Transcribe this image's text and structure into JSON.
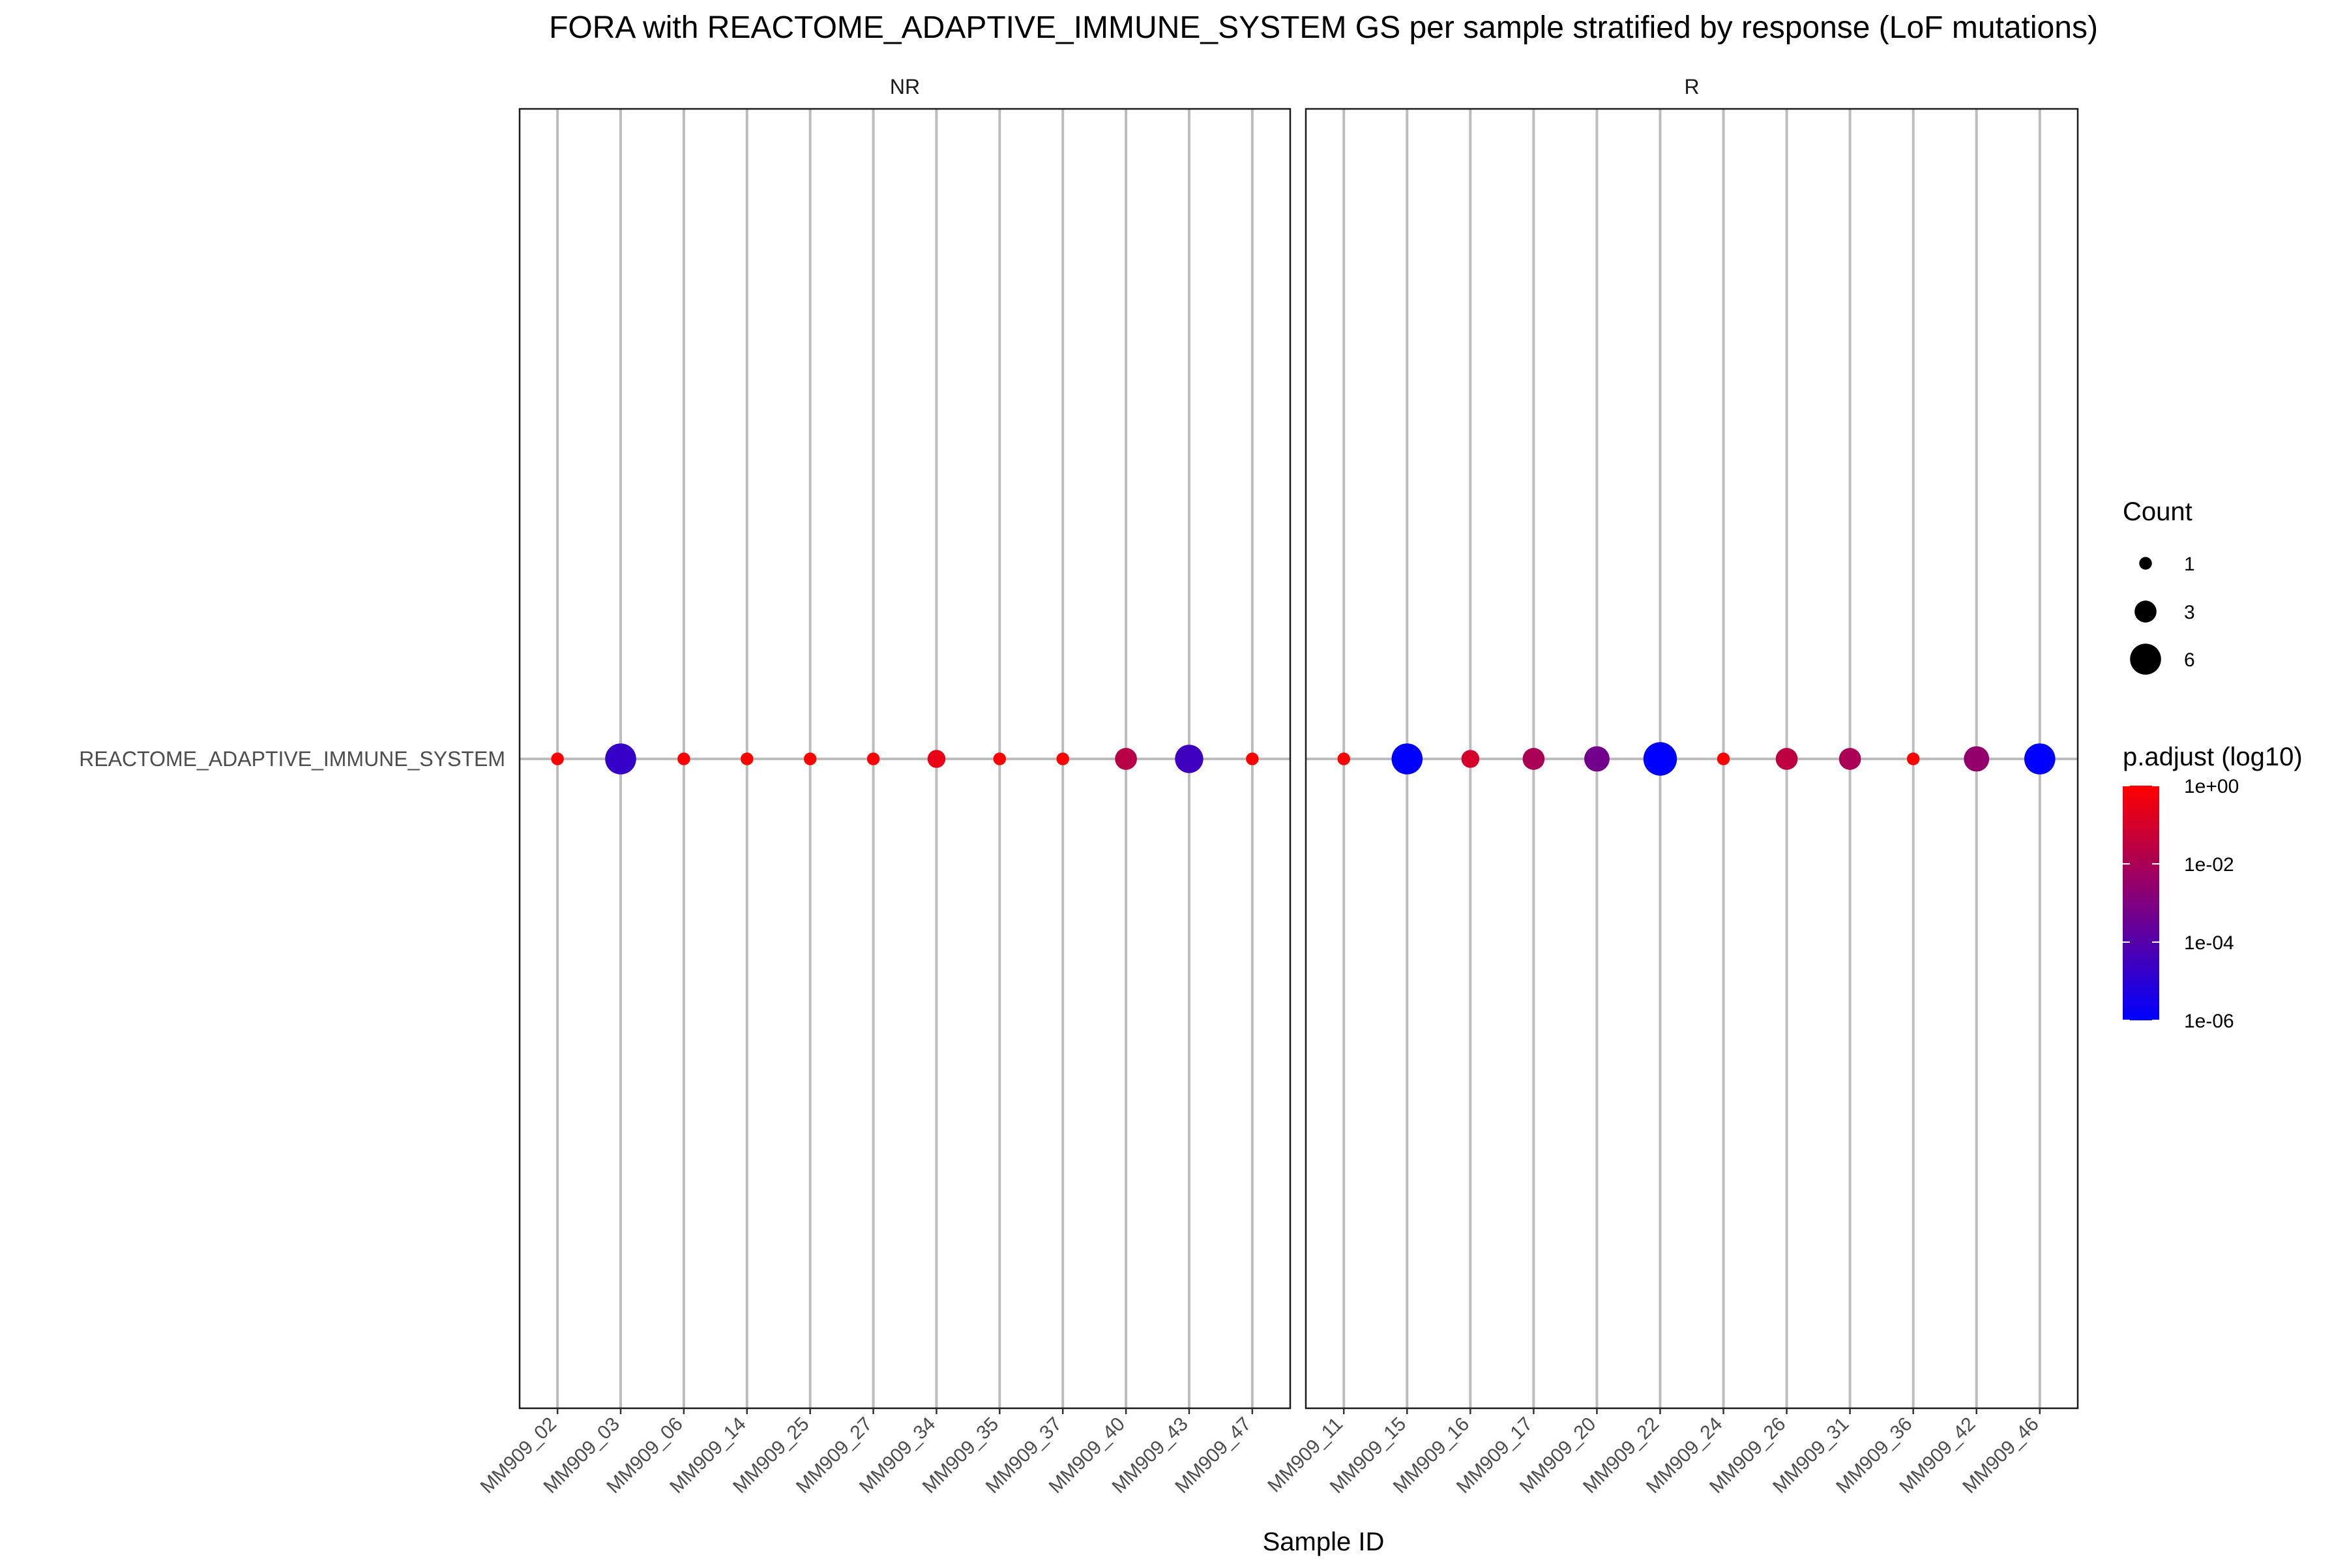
{
  "chart_data": {
    "type": "scatter",
    "title": "FORA with REACTOME_ADAPTIVE_IMMUNE_SYSTEM GS per sample stratified by response (LoF mutations)",
    "xlabel": "Sample ID",
    "ylabel": "",
    "y_categories": [
      "REACTOME_ADAPTIVE_IMMUNE_SYSTEM"
    ],
    "grid": true,
    "legend_position": "right",
    "facets": [
      {
        "label": "NR",
        "samples": [
          "MM909_02",
          "MM909_03",
          "MM909_06",
          "MM909_14",
          "MM909_25",
          "MM909_27",
          "MM909_34",
          "MM909_35",
          "MM909_37",
          "MM909_40",
          "MM909_43",
          "MM909_47"
        ],
        "count": [
          1,
          6,
          1,
          1,
          1,
          1,
          2,
          1,
          1,
          3,
          5,
          1
        ],
        "p_adjust": [
          1.0,
          2e-05,
          1.0,
          1.0,
          1.0,
          1.0,
          0.3,
          1.0,
          1.0,
          0.02,
          3e-05,
          1.0
        ]
      },
      {
        "label": "R",
        "samples": [
          "MM909_11",
          "MM909_15",
          "MM909_16",
          "MM909_17",
          "MM909_20",
          "MM909_22",
          "MM909_24",
          "MM909_26",
          "MM909_31",
          "MM909_36",
          "MM909_42",
          "MM909_46"
        ],
        "count": [
          1,
          6,
          2,
          3,
          4,
          7,
          1,
          3,
          3,
          1,
          4,
          6
        ],
        "p_adjust": [
          1.0,
          1e-06,
          0.1,
          0.01,
          0.0005,
          1e-06,
          1.0,
          0.03,
          0.01,
          1.0,
          0.003,
          1e-06
        ]
      }
    ],
    "size_legend": {
      "title": "Count",
      "values": [
        1,
        3,
        6
      ],
      "labels": [
        "1",
        "3",
        "6"
      ]
    },
    "color_legend": {
      "title": "p.adjust (log10)",
      "values": [
        1,
        0.01,
        0.0001,
        1e-06
      ],
      "labels": [
        "1e+00",
        "1e-02",
        "1e-04",
        "1e-06"
      ],
      "log_scale": true,
      "low_color": "#0000ff",
      "high_color": "#ff0000"
    },
    "colors": {
      "grid": "#bdbdbd",
      "panel_border": "#1a1a1a"
    }
  }
}
